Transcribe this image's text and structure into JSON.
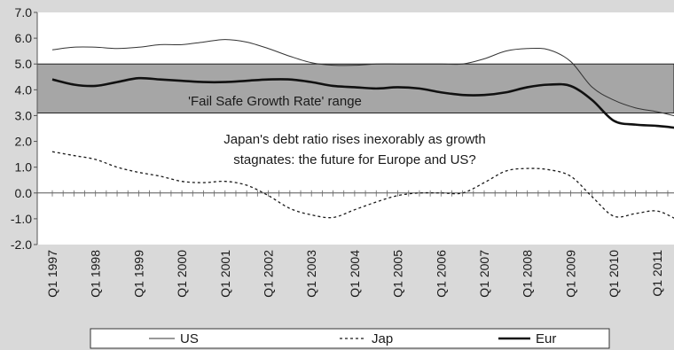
{
  "chart_data": {
    "type": "line",
    "title": "",
    "xlabel": "",
    "ylabel": "",
    "ylim": [
      -2.0,
      7.0
    ],
    "yticks": [
      "-2.0",
      "-1.0",
      "0.0",
      "1.0",
      "2.0",
      "3.0",
      "4.0",
      "5.0",
      "6.0",
      "7.0"
    ],
    "x_tick_labels": [
      "Q1 1997",
      "Q1 1998",
      "Q1 1999",
      "Q1 2000",
      "Q1 2001",
      "Q1 2002",
      "Q1 2003",
      "Q1 2004",
      "Q1 2005",
      "Q1 2006",
      "Q1 2007",
      "Q1 2008",
      "Q1 2009",
      "Q1 2010",
      "Q1 2011"
    ],
    "x": [
      "1997Q1",
      "1997Q3",
      "1998Q1",
      "1998Q3",
      "1999Q1",
      "1999Q3",
      "2000Q1",
      "2000Q3",
      "2001Q1",
      "2001Q3",
      "2002Q1",
      "2002Q3",
      "2003Q1",
      "2003Q3",
      "2004Q1",
      "2004Q3",
      "2005Q1",
      "2005Q3",
      "2006Q1",
      "2006Q3",
      "2007Q1",
      "2007Q3",
      "2008Q1",
      "2008Q3",
      "2009Q1",
      "2009Q3",
      "2010Q1",
      "2010Q3",
      "2011Q1",
      "2011Q3",
      "2012Q1"
    ],
    "series": [
      {
        "name": "US",
        "style": "thin",
        "color": "#333333",
        "values": [
          5.55,
          5.65,
          5.65,
          5.6,
          5.65,
          5.75,
          5.75,
          5.85,
          5.95,
          5.85,
          5.6,
          5.3,
          5.05,
          4.95,
          4.95,
          5.0,
          5.0,
          5.0,
          5.0,
          5.0,
          5.2,
          5.5,
          5.6,
          5.55,
          5.1,
          4.1,
          3.6,
          3.3,
          3.15,
          2.95,
          2.75
        ]
      },
      {
        "name": "Jap",
        "style": "dashed",
        "color": "#1a1a1a",
        "values": [
          1.6,
          1.45,
          1.3,
          1.0,
          0.8,
          0.65,
          0.45,
          0.4,
          0.45,
          0.3,
          -0.1,
          -0.6,
          -0.85,
          -0.95,
          -0.65,
          -0.35,
          -0.1,
          0.0,
          0.0,
          0.0,
          0.4,
          0.85,
          0.95,
          0.9,
          0.65,
          -0.15,
          -0.9,
          -0.8,
          -0.7,
          -1.05,
          -1.35
        ]
      },
      {
        "name": "Eur",
        "style": "thick",
        "color": "#111111",
        "values": [
          4.4,
          4.2,
          4.15,
          4.3,
          4.45,
          4.4,
          4.35,
          4.3,
          4.3,
          4.35,
          4.4,
          4.4,
          4.3,
          4.15,
          4.1,
          4.05,
          4.1,
          4.05,
          3.9,
          3.8,
          3.8,
          3.9,
          4.1,
          4.2,
          4.15,
          3.6,
          2.8,
          2.65,
          2.6,
          2.5,
          2.25
        ]
      }
    ],
    "band": {
      "low": 3.1,
      "high": 5.0,
      "label": "'Fail Safe Growth Rate' range",
      "color": "#a6a6a6"
    },
    "annotation": {
      "lines": [
        "Japan's debt ratio rises inexorably as growth",
        "stagnates: the future for Europe and US?"
      ]
    },
    "legend": {
      "placement": "bottom"
    },
    "grid": false
  }
}
